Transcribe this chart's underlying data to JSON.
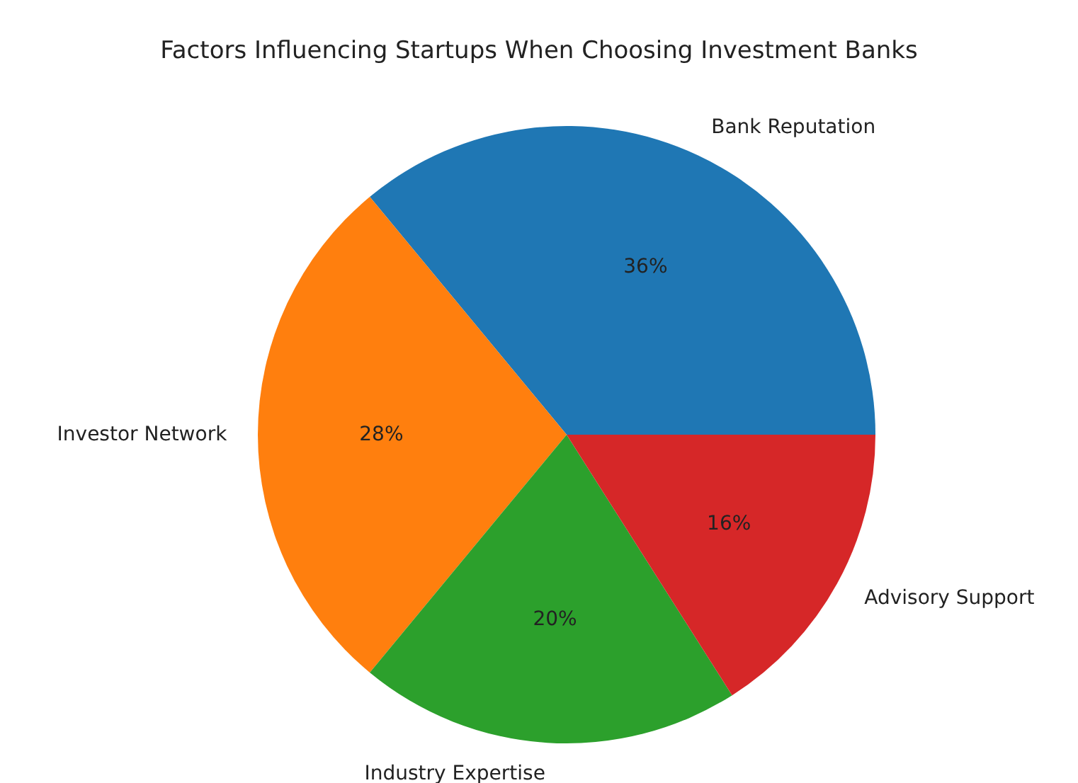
{
  "chart_data": {
    "type": "pie",
    "title": "Factors Influencing Startups When Choosing Investment Banks",
    "categories": [
      "Bank Reputation",
      "Investor Network",
      "Industry Expertise",
      "Advisory Support"
    ],
    "values": [
      36,
      28,
      20,
      16
    ],
    "colors": [
      "#1f77b4",
      "#ff7f0e",
      "#2ca02c",
      "#d62728"
    ],
    "value_labels": [
      "36%",
      "28%",
      "20%",
      "16%"
    ]
  }
}
